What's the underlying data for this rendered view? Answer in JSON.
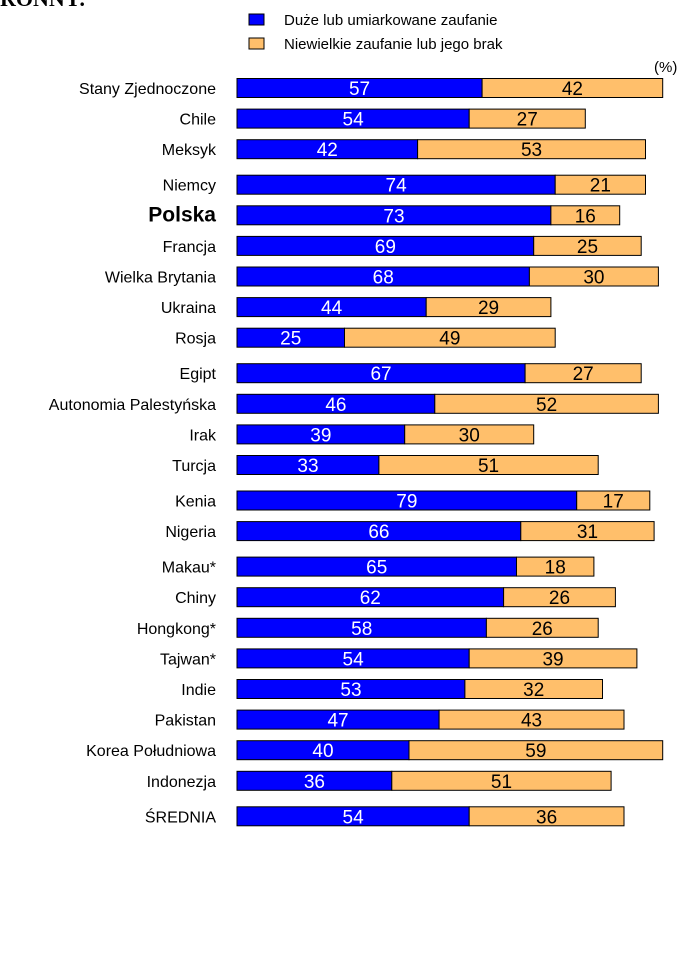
{
  "title": "RONNY:",
  "chart_data": {
    "type": "bar",
    "stacked": true,
    "orientation": "horizontal",
    "unit_label": "(%)",
    "legend_placement": "top",
    "series": [
      {
        "name": "Duże lub umiarkowane zaufanie",
        "color": "#0000ff",
        "label_color": "#ffffff"
      },
      {
        "name": "Niewielkie zaufanie lub jego brak",
        "color": "#ffbf6b",
        "label_color": "#000000"
      }
    ],
    "groups": [
      [
        {
          "name": "Stany Zjednoczone",
          "values": [
            57,
            42
          ]
        },
        {
          "name": "Chile",
          "values": [
            54,
            27
          ]
        },
        {
          "name": "Meksyk",
          "values": [
            42,
            53
          ]
        }
      ],
      [
        {
          "name": "Niemcy",
          "values": [
            74,
            21
          ]
        },
        {
          "name": "Polska",
          "values": [
            73,
            16
          ],
          "bold": true
        },
        {
          "name": "Francja",
          "values": [
            69,
            25
          ]
        },
        {
          "name": "Wielka Brytania",
          "values": [
            68,
            30
          ]
        },
        {
          "name": "Ukraina",
          "values": [
            44,
            29
          ]
        },
        {
          "name": "Rosja",
          "values": [
            25,
            49
          ]
        }
      ],
      [
        {
          "name": "Egipt",
          "values": [
            67,
            27
          ]
        },
        {
          "name": "Autonomia Palestyńska",
          "values": [
            46,
            52
          ]
        },
        {
          "name": "Irak",
          "values": [
            39,
            30
          ]
        },
        {
          "name": "Turcja",
          "values": [
            33,
            51
          ]
        }
      ],
      [
        {
          "name": "Kenia",
          "values": [
            79,
            17
          ]
        },
        {
          "name": "Nigeria",
          "values": [
            66,
            31
          ]
        }
      ],
      [
        {
          "name": "Makau*",
          "values": [
            65,
            18
          ]
        },
        {
          "name": "Chiny",
          "values": [
            62,
            26
          ]
        },
        {
          "name": "Hongkong*",
          "values": [
            58,
            26
          ]
        },
        {
          "name": "Tajwan*",
          "values": [
            54,
            39
          ]
        },
        {
          "name": "Indie",
          "values": [
            53,
            32
          ]
        },
        {
          "name": "Pakistan",
          "values": [
            47,
            43
          ]
        },
        {
          "name": "Korea Południowa",
          "values": [
            40,
            59
          ]
        },
        {
          "name": "Indonezja",
          "values": [
            36,
            51
          ]
        }
      ],
      [
        {
          "name": "ŚREDNIA",
          "values": [
            54,
            36
          ]
        }
      ]
    ]
  }
}
